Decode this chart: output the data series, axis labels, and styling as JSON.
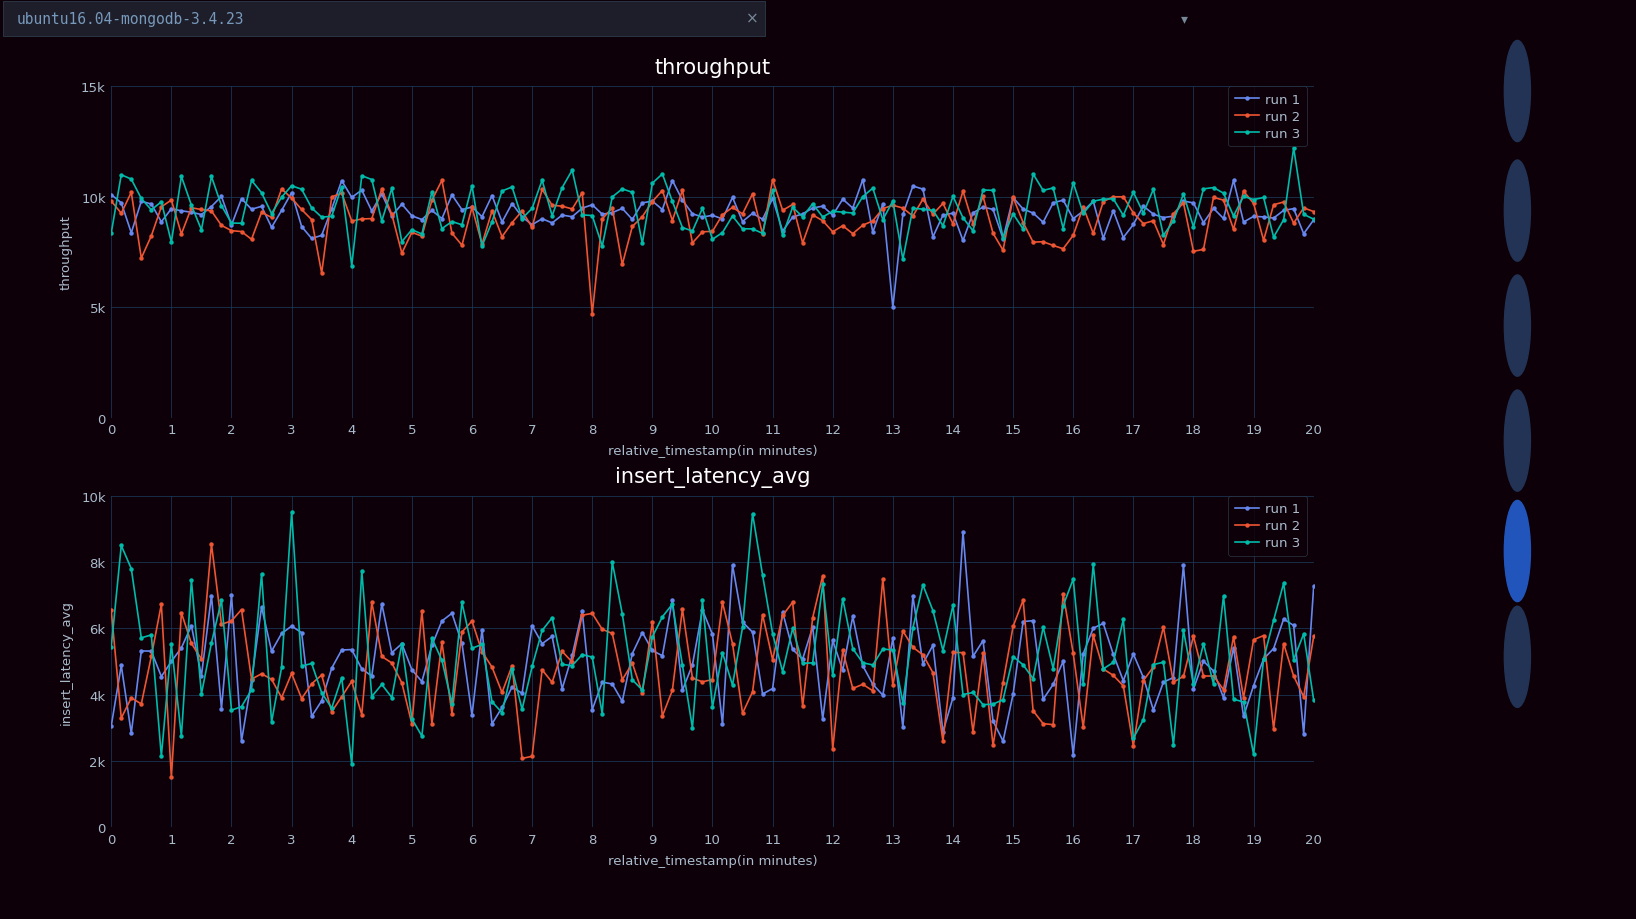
{
  "background_color": "#0d0008",
  "plot_bg": "#0d0008",
  "grid_color": "#1a3a5a",
  "text_color": "#aabbcc",
  "title_color": "#ffffff",
  "tab_bg": "#1a1a1a",
  "tab_text_color": "#7799bb",
  "colors": {
    "run1": "#6688ee",
    "run2": "#ee5533",
    "run3": "#00bbaa"
  },
  "chart1": {
    "title": "throughput",
    "ylabel": "throughput",
    "xlabel": "relative_timestamp(in minutes)",
    "ylim": [
      0,
      15000
    ],
    "yticks": [
      0,
      5000,
      10000,
      15000
    ],
    "ytick_labels": [
      "0",
      "5k",
      "10k",
      "15k"
    ],
    "xlim": [
      0,
      20
    ],
    "xticks": [
      0,
      1,
      2,
      3,
      4,
      5,
      6,
      7,
      8,
      9,
      10,
      11,
      12,
      13,
      14,
      15,
      16,
      17,
      18,
      19,
      20
    ]
  },
  "chart2": {
    "title": "insert_latency_avg",
    "ylabel": "insert_latency_avg",
    "xlabel": "relative_timestamp(in minutes)",
    "ylim": [
      0,
      10000
    ],
    "yticks": [
      0,
      2000,
      4000,
      6000,
      8000,
      10000
    ],
    "ytick_labels": [
      "0",
      "2k",
      "4k",
      "6k",
      "8k",
      "10k"
    ],
    "xlim": [
      0,
      20
    ],
    "xticks": [
      0,
      1,
      2,
      3,
      4,
      5,
      6,
      7,
      8,
      9,
      10,
      11,
      12,
      13,
      14,
      15,
      16,
      17,
      18,
      19,
      20
    ]
  },
  "legend_labels": [
    "run 1",
    "run 2",
    "run 3"
  ],
  "tab_label": "ubuntu16.04-mongodb-3.4.23",
  "icon_panel_bg": "#0a0a14",
  "icon_colors_inactive": "#223355",
  "icon_color_active": "#2255bb"
}
